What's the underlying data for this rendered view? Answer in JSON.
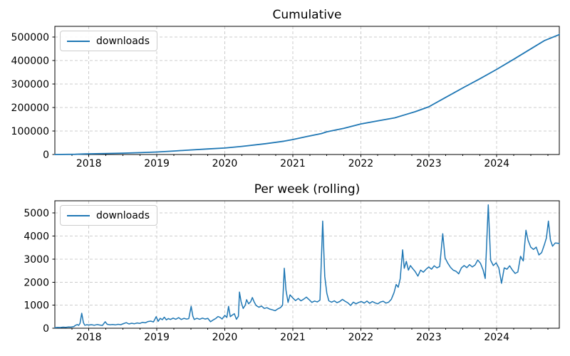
{
  "style": {
    "line_color": "#1f77b4",
    "grid_color": "#cccccc",
    "spine_color": "#000000",
    "text_color": "#000000",
    "background": "#ffffff"
  },
  "chart_data": [
    {
      "type": "line",
      "title": "Cumulative",
      "xlabel": "",
      "ylabel": "",
      "grid": true,
      "legend_position": "upper left",
      "xlim": [
        2017.5,
        2024.92
      ],
      "ylim": [
        0,
        545000
      ],
      "xticks": [
        2018,
        2019,
        2020,
        2021,
        2022,
        2023,
        2024
      ],
      "xtick_labels": [
        "2018",
        "2019",
        "2020",
        "2021",
        "2022",
        "2023",
        "2024"
      ],
      "yticks": [
        0,
        100000,
        200000,
        300000,
        400000,
        500000
      ],
      "ytick_labels": [
        "0",
        "100000",
        "200000",
        "300000",
        "400000",
        "500000"
      ],
      "xminor_step": 0.25,
      "series": [
        {
          "name": "downloads",
          "x": [
            2017.5,
            2017.8,
            2017.95,
            2018.25,
            2018.5,
            2018.75,
            2019.0,
            2019.25,
            2019.5,
            2019.75,
            2020.0,
            2020.25,
            2020.6,
            2020.87,
            2021.0,
            2021.2,
            2021.42,
            2021.5,
            2021.75,
            2022.0,
            2022.25,
            2022.5,
            2022.65,
            2022.8,
            2023.0,
            2023.25,
            2023.5,
            2023.75,
            2024.0,
            2024.25,
            2024.5,
            2024.7,
            2024.92
          ],
          "y": [
            0,
            900,
            2300,
            4300,
            5800,
            8000,
            10500,
            14800,
            19500,
            23500,
            27500,
            34500,
            46000,
            56500,
            63500,
            76000,
            89000,
            96500,
            111000,
            130000,
            143000,
            156000,
            169000,
            182000,
            203000,
            243000,
            283000,
            322000,
            362000,
            405000,
            449000,
            484000,
            510000
          ]
        }
      ]
    },
    {
      "type": "line",
      "title": "Per week (rolling)",
      "xlabel": "",
      "ylabel": "",
      "grid": true,
      "legend_position": "upper left",
      "xlim": [
        2017.5,
        2024.92
      ],
      "ylim": [
        0,
        5530
      ],
      "xticks": [
        2018,
        2019,
        2020,
        2021,
        2022,
        2023,
        2024
      ],
      "xtick_labels": [
        "2018",
        "2019",
        "2020",
        "2021",
        "2022",
        "2023",
        "2024"
      ],
      "yticks": [
        0,
        1000,
        2000,
        3000,
        4000,
        5000
      ],
      "ytick_labels": [
        "0",
        "1000",
        "2000",
        "3000",
        "4000",
        "5000"
      ],
      "xminor_step": 0.25,
      "series": [
        {
          "name": "downloads",
          "x": [
            2017.5,
            2017.54,
            2017.58,
            2017.62,
            2017.66,
            2017.7,
            2017.74,
            2017.78,
            2017.8,
            2017.83,
            2017.85,
            2017.87,
            2017.895,
            2017.92,
            2017.94,
            2017.97,
            2018.0,
            2018.04,
            2018.08,
            2018.12,
            2018.16,
            2018.2,
            2018.24,
            2018.27,
            2018.31,
            2018.35,
            2018.39,
            2018.43,
            2018.47,
            2018.51,
            2018.55,
            2018.59,
            2018.63,
            2018.67,
            2018.71,
            2018.75,
            2018.79,
            2018.83,
            2018.87,
            2018.91,
            2018.95,
            2018.99,
            2019.02,
            2019.05,
            2019.08,
            2019.11,
            2019.14,
            2019.17,
            2019.2,
            2019.24,
            2019.28,
            2019.32,
            2019.36,
            2019.4,
            2019.44,
            2019.47,
            2019.505,
            2019.53,
            2019.55,
            2019.59,
            2019.63,
            2019.67,
            2019.71,
            2019.75,
            2019.79,
            2019.83,
            2019.87,
            2019.9,
            2019.93,
            2019.96,
            2020.0,
            2020.03,
            2020.055,
            2020.08,
            2020.11,
            2020.14,
            2020.17,
            2020.2,
            2020.215,
            2020.24,
            2020.27,
            2020.3,
            2020.32,
            2020.35,
            2020.38,
            2020.405,
            2020.43,
            2020.46,
            2020.5,
            2020.54,
            2020.58,
            2020.62,
            2020.66,
            2020.7,
            2020.74,
            2020.78,
            2020.82,
            2020.85,
            2020.875,
            2020.9,
            2020.93,
            2020.96,
            2021.0,
            2021.04,
            2021.08,
            2021.12,
            2021.16,
            2021.2,
            2021.24,
            2021.28,
            2021.32,
            2021.36,
            2021.4,
            2021.44,
            2021.47,
            2021.5,
            2021.53,
            2021.57,
            2021.61,
            2021.65,
            2021.69,
            2021.73,
            2021.77,
            2021.81,
            2021.85,
            2021.89,
            2021.93,
            2021.97,
            2022.01,
            2022.05,
            2022.09,
            2022.13,
            2022.17,
            2022.21,
            2022.25,
            2022.29,
            2022.33,
            2022.37,
            2022.41,
            2022.45,
            2022.49,
            2022.52,
            2022.55,
            2022.58,
            2022.615,
            2022.64,
            2022.67,
            2022.7,
            2022.73,
            2022.76,
            2022.8,
            2022.84,
            2022.88,
            2022.92,
            2022.96,
            2023.0,
            2023.04,
            2023.08,
            2023.12,
            2023.16,
            2023.205,
            2023.24,
            2023.28,
            2023.32,
            2023.36,
            2023.4,
            2023.44,
            2023.48,
            2023.52,
            2023.56,
            2023.6,
            2023.64,
            2023.68,
            2023.72,
            2023.76,
            2023.8,
            2023.83,
            2023.875,
            2023.91,
            2023.95,
            2023.99,
            2024.03,
            2024.07,
            2024.11,
            2024.15,
            2024.19,
            2024.23,
            2024.27,
            2024.31,
            2024.35,
            2024.39,
            2024.43,
            2024.46,
            2024.5,
            2024.54,
            2024.58,
            2024.62,
            2024.66,
            2024.7,
            2024.73,
            2024.76,
            2024.79,
            2024.82,
            2024.86,
            2024.92
          ],
          "y": [
            25,
            35,
            30,
            45,
            40,
            55,
            50,
            75,
            120,
            160,
            125,
            210,
            650,
            240,
            130,
            150,
            140,
            155,
            130,
            160,
            140,
            125,
            280,
            170,
            150,
            165,
            145,
            170,
            155,
            200,
            240,
            185,
            215,
            195,
            230,
            210,
            255,
            235,
            290,
            310,
            275,
            500,
            300,
            430,
            370,
            480,
            360,
            420,
            380,
            440,
            390,
            460,
            380,
            430,
            395,
            420,
            950,
            520,
            380,
            430,
            390,
            440,
            400,
            430,
            280,
            360,
            430,
            510,
            470,
            400,
            560,
            470,
            950,
            500,
            570,
            630,
            390,
            520,
            1570,
            1150,
            860,
            1000,
            1240,
            1060,
            1150,
            1330,
            1150,
            990,
            910,
            960,
            860,
            890,
            830,
            800,
            760,
            840,
            900,
            1000,
            2600,
            1650,
            1120,
            1450,
            1310,
            1200,
            1290,
            1190,
            1260,
            1350,
            1240,
            1120,
            1180,
            1140,
            1220,
            4650,
            2250,
            1520,
            1190,
            1130,
            1190,
            1110,
            1160,
            1250,
            1170,
            1100,
            990,
            1130,
            1060,
            1120,
            1160,
            1090,
            1180,
            1080,
            1160,
            1100,
            1060,
            1140,
            1170,
            1090,
            1130,
            1260,
            1550,
            1900,
            1780,
            2150,
            3400,
            2600,
            2900,
            2520,
            2720,
            2600,
            2460,
            2260,
            2520,
            2430,
            2560,
            2660,
            2560,
            2710,
            2620,
            2680,
            4100,
            3050,
            2820,
            2640,
            2520,
            2470,
            2360,
            2620,
            2720,
            2630,
            2760,
            2660,
            2740,
            2960,
            2820,
            2520,
            2160,
            5350,
            2950,
            2720,
            2840,
            2620,
            1950,
            2620,
            2560,
            2710,
            2520,
            2380,
            2440,
            3120,
            2920,
            4250,
            3820,
            3520,
            3420,
            3520,
            3180,
            3280,
            3620,
            3920,
            4650,
            3820,
            3560,
            3700,
            3680
          ]
        }
      ]
    }
  ]
}
